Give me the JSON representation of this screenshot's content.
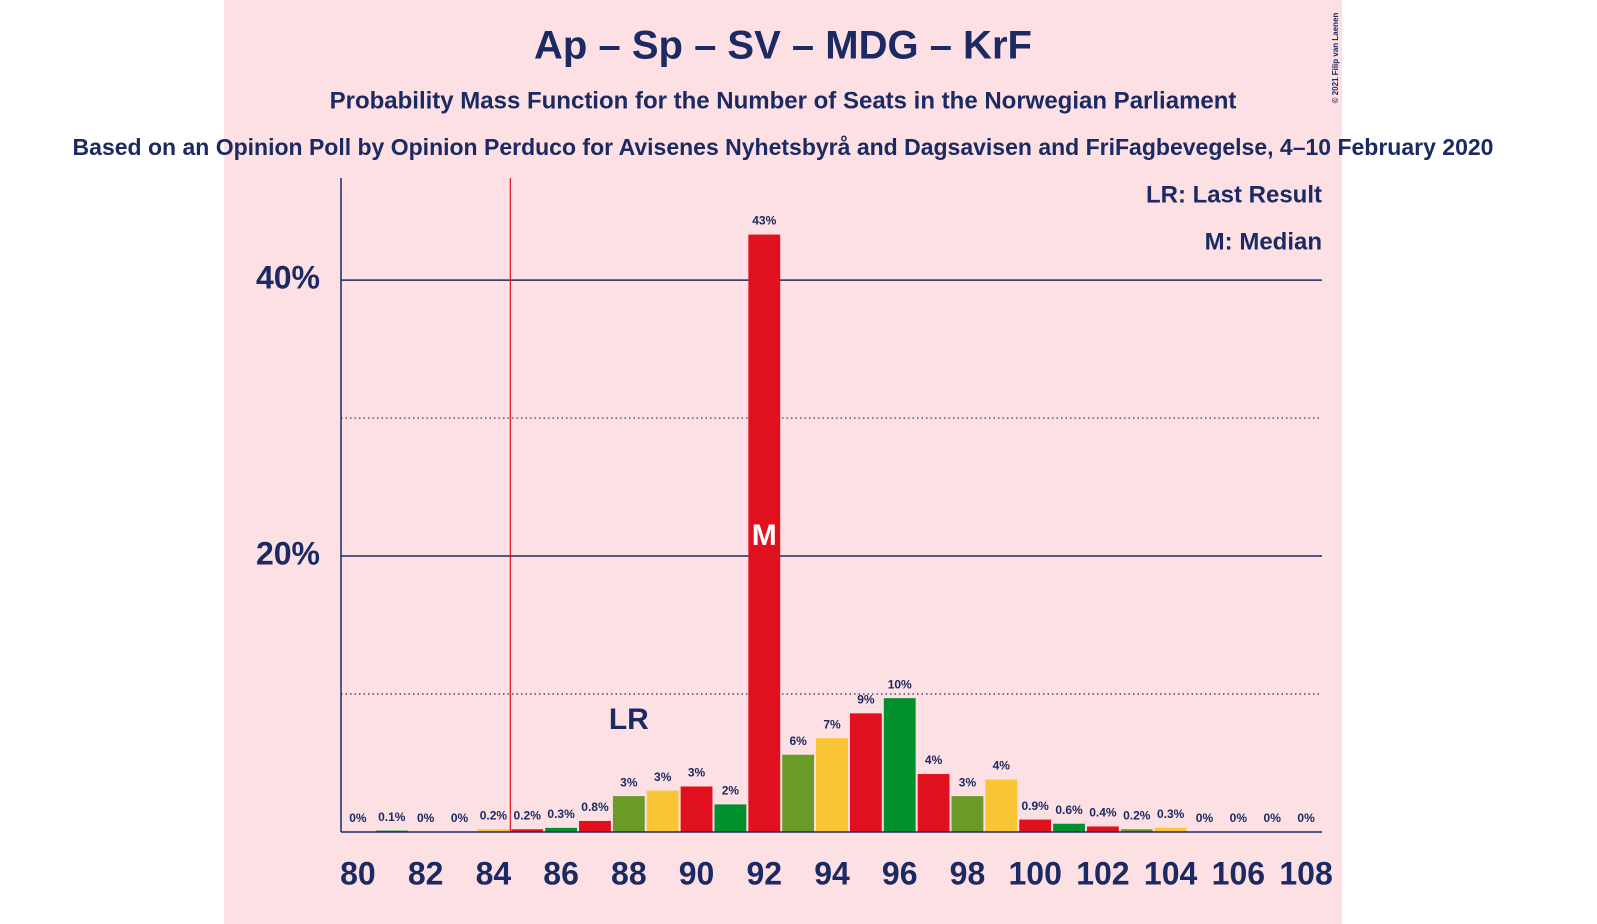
{
  "chart_data": {
    "type": "bar",
    "title": "Ap – Sp – SV – MDG – KrF",
    "subtitle": "Probability Mass Function for the Number of Seats in the Norwegian Parliament",
    "source": "Based on an Opinion Poll by Opinion Perduco for Avisenes Nyhetsbyrå and Dagsavisen and FriFagbevegelse, 4–10 February 2020",
    "copyright": "© 2021 Filip van Laenen",
    "x": [
      80,
      81,
      82,
      83,
      84,
      85,
      86,
      87,
      88,
      89,
      90,
      91,
      92,
      93,
      94,
      95,
      96,
      97,
      98,
      99,
      100,
      101,
      102,
      103,
      104,
      105,
      106,
      107,
      108
    ],
    "values": [
      0,
      0.1,
      0,
      0,
      0.2,
      0.2,
      0.3,
      0.8,
      2.6,
      3.0,
      3.3,
      2.0,
      43.3,
      5.6,
      6.8,
      8.6,
      9.7,
      4.2,
      2.6,
      3.8,
      0.9,
      0.6,
      0.4,
      0.2,
      0.3,
      0,
      0,
      0,
      0
    ],
    "value_labels": [
      "0%",
      "0.1%",
      "0%",
      "0%",
      "0.2%",
      "0.2%",
      "0.3%",
      "0.8%",
      "3%",
      "3%",
      "3%",
      "2%",
      "43%",
      "6%",
      "7%",
      "9%",
      "10%",
      "4%",
      "3%",
      "4%",
      "0.9%",
      "0.6%",
      "0.4%",
      "0.2%",
      "0.3%",
      "0%",
      "0%",
      "0%",
      "0%"
    ],
    "colors": [
      "#e0101e",
      "#00902e",
      "#e0101e",
      "#6a9a28",
      "#f9c535",
      "#e0101e",
      "#00902e",
      "#e0101e",
      "#6a9a28",
      "#f9c535",
      "#e0101e",
      "#00902e",
      "#e0101e",
      "#6a9a28",
      "#f9c535",
      "#e0101e",
      "#00902e",
      "#e0101e",
      "#6a9a28",
      "#f9c535",
      "#e0101e",
      "#00902e",
      "#e0101e",
      "#6a9a28",
      "#f9c535",
      "#e0101e",
      "#00902e",
      "#e0101e",
      "#6a9a28"
    ],
    "xlim": [
      79.5,
      108.5
    ],
    "xticks": [
      80,
      82,
      84,
      86,
      88,
      90,
      92,
      94,
      96,
      98,
      100,
      102,
      104,
      106,
      108
    ],
    "ylim": [
      0,
      47.4
    ],
    "yticks": [
      {
        "value": 20,
        "label": "20%"
      },
      {
        "value": 40,
        "label": "40%"
      }
    ],
    "minor_yticks": [
      10,
      30
    ],
    "majority": 85,
    "last_result": {
      "x": 88,
      "label": "LR"
    },
    "median": {
      "x": 92,
      "label": "M"
    },
    "legend": [
      "LR: Last Result",
      "M: Median"
    ]
  }
}
